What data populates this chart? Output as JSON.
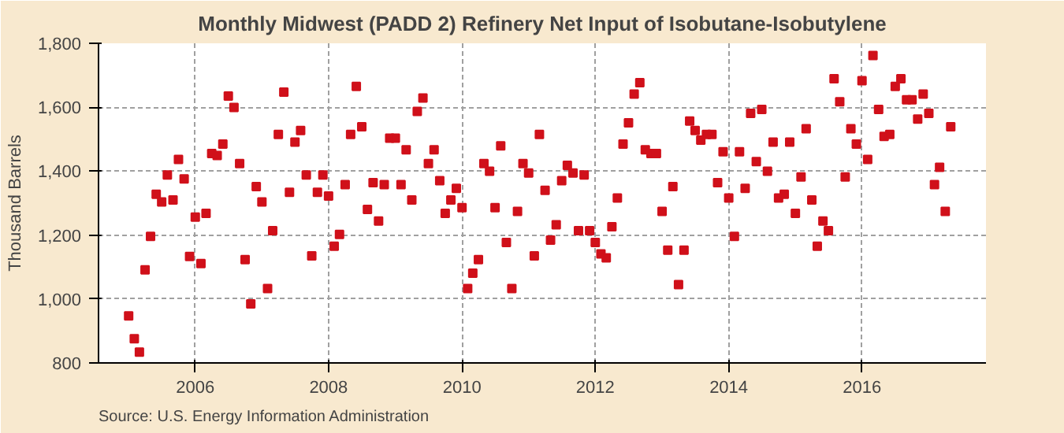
{
  "chart_data": {
    "type": "scatter",
    "title": "Monthly Midwest (PADD 2) Refinery Net Input of Isobutane-Isobutylene",
    "ylabel": "Thousand Barrels",
    "annotations": [
      "Source: U.S. Energy Information Administration"
    ],
    "marker": "square",
    "grid": true,
    "xlim": [
      "2004-07-20",
      "2017-11-10"
    ],
    "xticks": [
      "2006",
      "2008",
      "2010",
      "2012",
      "2014",
      "2016"
    ],
    "ylim": [
      800,
      1800
    ],
    "yticks": [
      800,
      {
        "value": 1000,
        "label": "1,000"
      },
      {
        "value": 1200,
        "label": "1,200"
      },
      {
        "value": 1400,
        "label": "1,400"
      },
      {
        "value": 1600,
        "label": "1,600"
      },
      {
        "value": 1800,
        "label": "1,800"
      }
    ],
    "x": [
      "2005-01",
      "2005-02",
      "2005-03",
      "2005-04",
      "2005-05",
      "2005-06",
      "2005-07",
      "2005-08",
      "2005-09",
      "2005-10",
      "2005-11",
      "2005-12",
      "2006-01",
      "2006-02",
      "2006-03",
      "2006-04",
      "2006-05",
      "2006-06",
      "2006-07",
      "2006-08",
      "2006-09",
      "2006-10",
      "2006-11",
      "2006-12",
      "2007-01",
      "2007-02",
      "2007-03",
      "2007-04",
      "2007-05",
      "2007-06",
      "2007-07",
      "2007-08",
      "2007-09",
      "2007-10",
      "2007-11",
      "2007-12",
      "2008-01",
      "2008-02",
      "2008-03",
      "2008-04",
      "2008-05",
      "2008-06",
      "2008-07",
      "2008-08",
      "2008-09",
      "2008-10",
      "2008-11",
      "2008-12",
      "2009-01",
      "2009-02",
      "2009-03",
      "2009-04",
      "2009-05",
      "2009-06",
      "2009-07",
      "2009-08",
      "2009-09",
      "2009-10",
      "2009-11",
      "2009-12",
      "2010-01",
      "2010-02",
      "2010-03",
      "2010-04",
      "2010-05",
      "2010-06",
      "2010-07",
      "2010-08",
      "2010-09",
      "2010-10",
      "2010-11",
      "2010-12",
      "2011-01",
      "2011-02",
      "2011-03",
      "2011-04",
      "2011-05",
      "2011-06",
      "2011-07",
      "2011-08",
      "2011-09",
      "2011-10",
      "2011-11",
      "2011-12",
      "2012-01",
      "2012-02",
      "2012-03",
      "2012-04",
      "2012-05",
      "2012-06",
      "2012-07",
      "2012-08",
      "2012-09",
      "2012-10",
      "2012-11",
      "2012-12",
      "2013-01",
      "2013-02",
      "2013-03",
      "2013-04",
      "2013-05",
      "2013-06",
      "2013-07",
      "2013-08",
      "2013-09",
      "2013-10",
      "2013-11",
      "2013-12",
      "2014-01",
      "2014-02",
      "2014-03",
      "2014-04",
      "2014-05",
      "2014-06",
      "2014-07",
      "2014-08",
      "2014-09",
      "2014-10",
      "2014-11",
      "2014-12",
      "2015-01",
      "2015-02",
      "2015-03",
      "2015-04",
      "2015-05",
      "2015-06",
      "2015-07",
      "2015-08",
      "2015-09",
      "2015-10",
      "2015-11",
      "2015-12",
      "2016-01",
      "2016-02",
      "2016-03",
      "2016-04",
      "2016-05",
      "2016-06",
      "2016-07",
      "2016-08",
      "2016-09",
      "2016-10",
      "2016-11",
      "2016-12",
      "2017-01",
      "2017-02",
      "2017-03",
      "2017-04",
      "2017-05"
    ],
    "series": [
      {
        "color": "#d0101a",
        "values": [
          947,
          876,
          834,
          1091,
          1196,
          1328,
          1304,
          1388,
          1310,
          1437,
          1376,
          1133,
          1256,
          1111,
          1268,
          1455,
          1449,
          1485,
          1635,
          1599,
          1424,
          1123,
          985,
          1352,
          1304,
          1033,
          1214,
          1515,
          1647,
          1334,
          1491,
          1527,
          1388,
          1135,
          1334,
          1388,
          1322,
          1165,
          1202,
          1358,
          1515,
          1665,
          1539,
          1280,
          1364,
          1244,
          1358,
          1503,
          1503,
          1358,
          1467,
          1310,
          1587,
          1629,
          1424,
          1467,
          1370,
          1268,
          1310,
          1346,
          1286,
          1033,
          1081,
          1123,
          1424,
          1400,
          1286,
          1479,
          1177,
          1033,
          1274,
          1424,
          1394,
          1135,
          1515,
          1340,
          1184,
          1232,
          1370,
          1418,
          1394,
          1214,
          1388,
          1214,
          1177,
          1141,
          1129,
          1226,
          1316,
          1485,
          1551,
          1641,
          1677,
          1467,
          1455,
          1455,
          1274,
          1153,
          1352,
          1045,
          1153,
          1557,
          1527,
          1497,
          1515,
          1515,
          1364,
          1461,
          1316,
          1196,
          1461,
          1346,
          1581,
          1430,
          1593,
          1400,
          1491,
          1316,
          1328,
          1491,
          1268,
          1382,
          1533,
          1310,
          1165,
          1244,
          1214,
          1689,
          1617,
          1382,
          1533,
          1485,
          1683,
          1437,
          1762,
          1593,
          1509,
          1515,
          1665,
          1689,
          1623,
          1623,
          1563,
          1641,
          1581,
          1358,
          1412,
          1274,
          1539
        ]
      }
    ]
  }
}
